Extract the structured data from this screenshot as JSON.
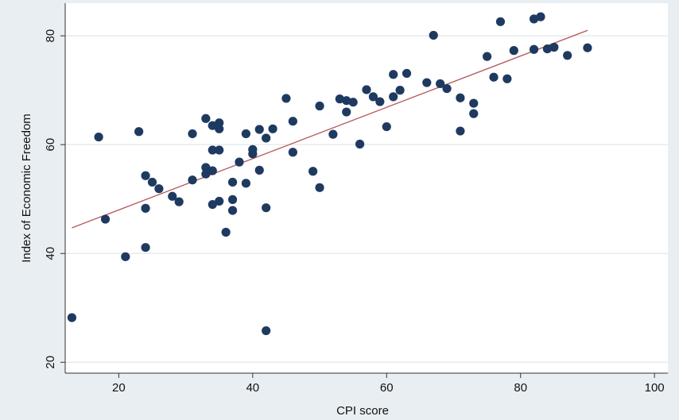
{
  "chart_data": {
    "type": "scatter",
    "title": "",
    "xlabel": "CPI score",
    "ylabel": "Index of Economic Freedom",
    "xlim": [
      12,
      102
    ],
    "ylim": [
      18,
      86
    ],
    "xticks": [
      20,
      40,
      60,
      80,
      100
    ],
    "yticks": [
      20,
      40,
      60,
      80
    ],
    "grid": "horizontal",
    "legend": "none",
    "colors": {
      "background": "#e9eef2",
      "plot_background": "#ffffff",
      "grid": "#e6ebef",
      "marker": "#1f3a60",
      "fit_line": "#b5565a",
      "axis": "#333333"
    },
    "series": [
      {
        "points": [
          [
            13,
            28.2
          ],
          [
            17,
            61.4
          ],
          [
            18,
            46.3
          ],
          [
            21,
            39.4
          ],
          [
            23,
            62.4
          ],
          [
            24,
            54.3
          ],
          [
            24,
            48.3
          ],
          [
            24,
            41.1
          ],
          [
            25,
            53.1
          ],
          [
            26,
            51.9
          ],
          [
            28,
            50.5
          ],
          [
            29,
            49.5
          ],
          [
            31,
            62.0
          ],
          [
            31,
            53.5
          ],
          [
            33,
            64.8
          ],
          [
            33,
            55.8
          ],
          [
            33,
            54.6
          ],
          [
            34,
            63.5
          ],
          [
            34,
            59.0
          ],
          [
            34,
            55.2
          ],
          [
            34,
            49.0
          ],
          [
            35,
            64.0
          ],
          [
            35,
            62.9
          ],
          [
            35,
            59.0
          ],
          [
            35,
            49.6
          ],
          [
            36,
            43.9
          ],
          [
            37,
            53.1
          ],
          [
            37,
            49.9
          ],
          [
            37,
            47.9
          ],
          [
            38,
            56.8
          ],
          [
            39,
            62.0
          ],
          [
            39,
            52.9
          ],
          [
            40,
            59.1
          ],
          [
            40,
            58.3
          ],
          [
            41,
            62.8
          ],
          [
            41,
            55.3
          ],
          [
            42,
            61.2
          ],
          [
            42,
            48.4
          ],
          [
            42,
            25.8
          ],
          [
            43,
            62.9
          ],
          [
            45,
            68.5
          ],
          [
            46,
            64.3
          ],
          [
            46,
            58.6
          ],
          [
            49,
            55.1
          ],
          [
            50,
            67.1
          ],
          [
            50,
            52.1
          ],
          [
            52,
            61.9
          ],
          [
            53,
            68.4
          ],
          [
            54,
            68.1
          ],
          [
            54,
            66.0
          ],
          [
            55,
            67.8
          ],
          [
            56,
            60.1
          ],
          [
            57,
            70.1
          ],
          [
            58,
            68.8
          ],
          [
            59,
            67.9
          ],
          [
            60,
            63.3
          ],
          [
            61,
            72.9
          ],
          [
            61,
            68.8
          ],
          [
            62,
            70.0
          ],
          [
            63,
            73.1
          ],
          [
            66,
            71.4
          ],
          [
            67,
            80.1
          ],
          [
            68,
            71.2
          ],
          [
            69,
            70.3
          ],
          [
            71,
            68.6
          ],
          [
            71,
            62.5
          ],
          [
            73,
            67.6
          ],
          [
            73,
            65.7
          ],
          [
            75,
            76.2
          ],
          [
            76,
            72.4
          ],
          [
            77,
            82.6
          ],
          [
            78,
            72.1
          ],
          [
            79,
            77.3
          ],
          [
            82,
            83.1
          ],
          [
            82,
            77.5
          ],
          [
            83,
            83.5
          ],
          [
            84,
            77.6
          ],
          [
            85,
            77.9
          ],
          [
            87,
            76.4
          ],
          [
            90,
            77.8
          ]
        ]
      }
    ],
    "fit_line": {
      "x": [
        13,
        90
      ],
      "y": [
        44.7,
        81.0
      ]
    }
  }
}
